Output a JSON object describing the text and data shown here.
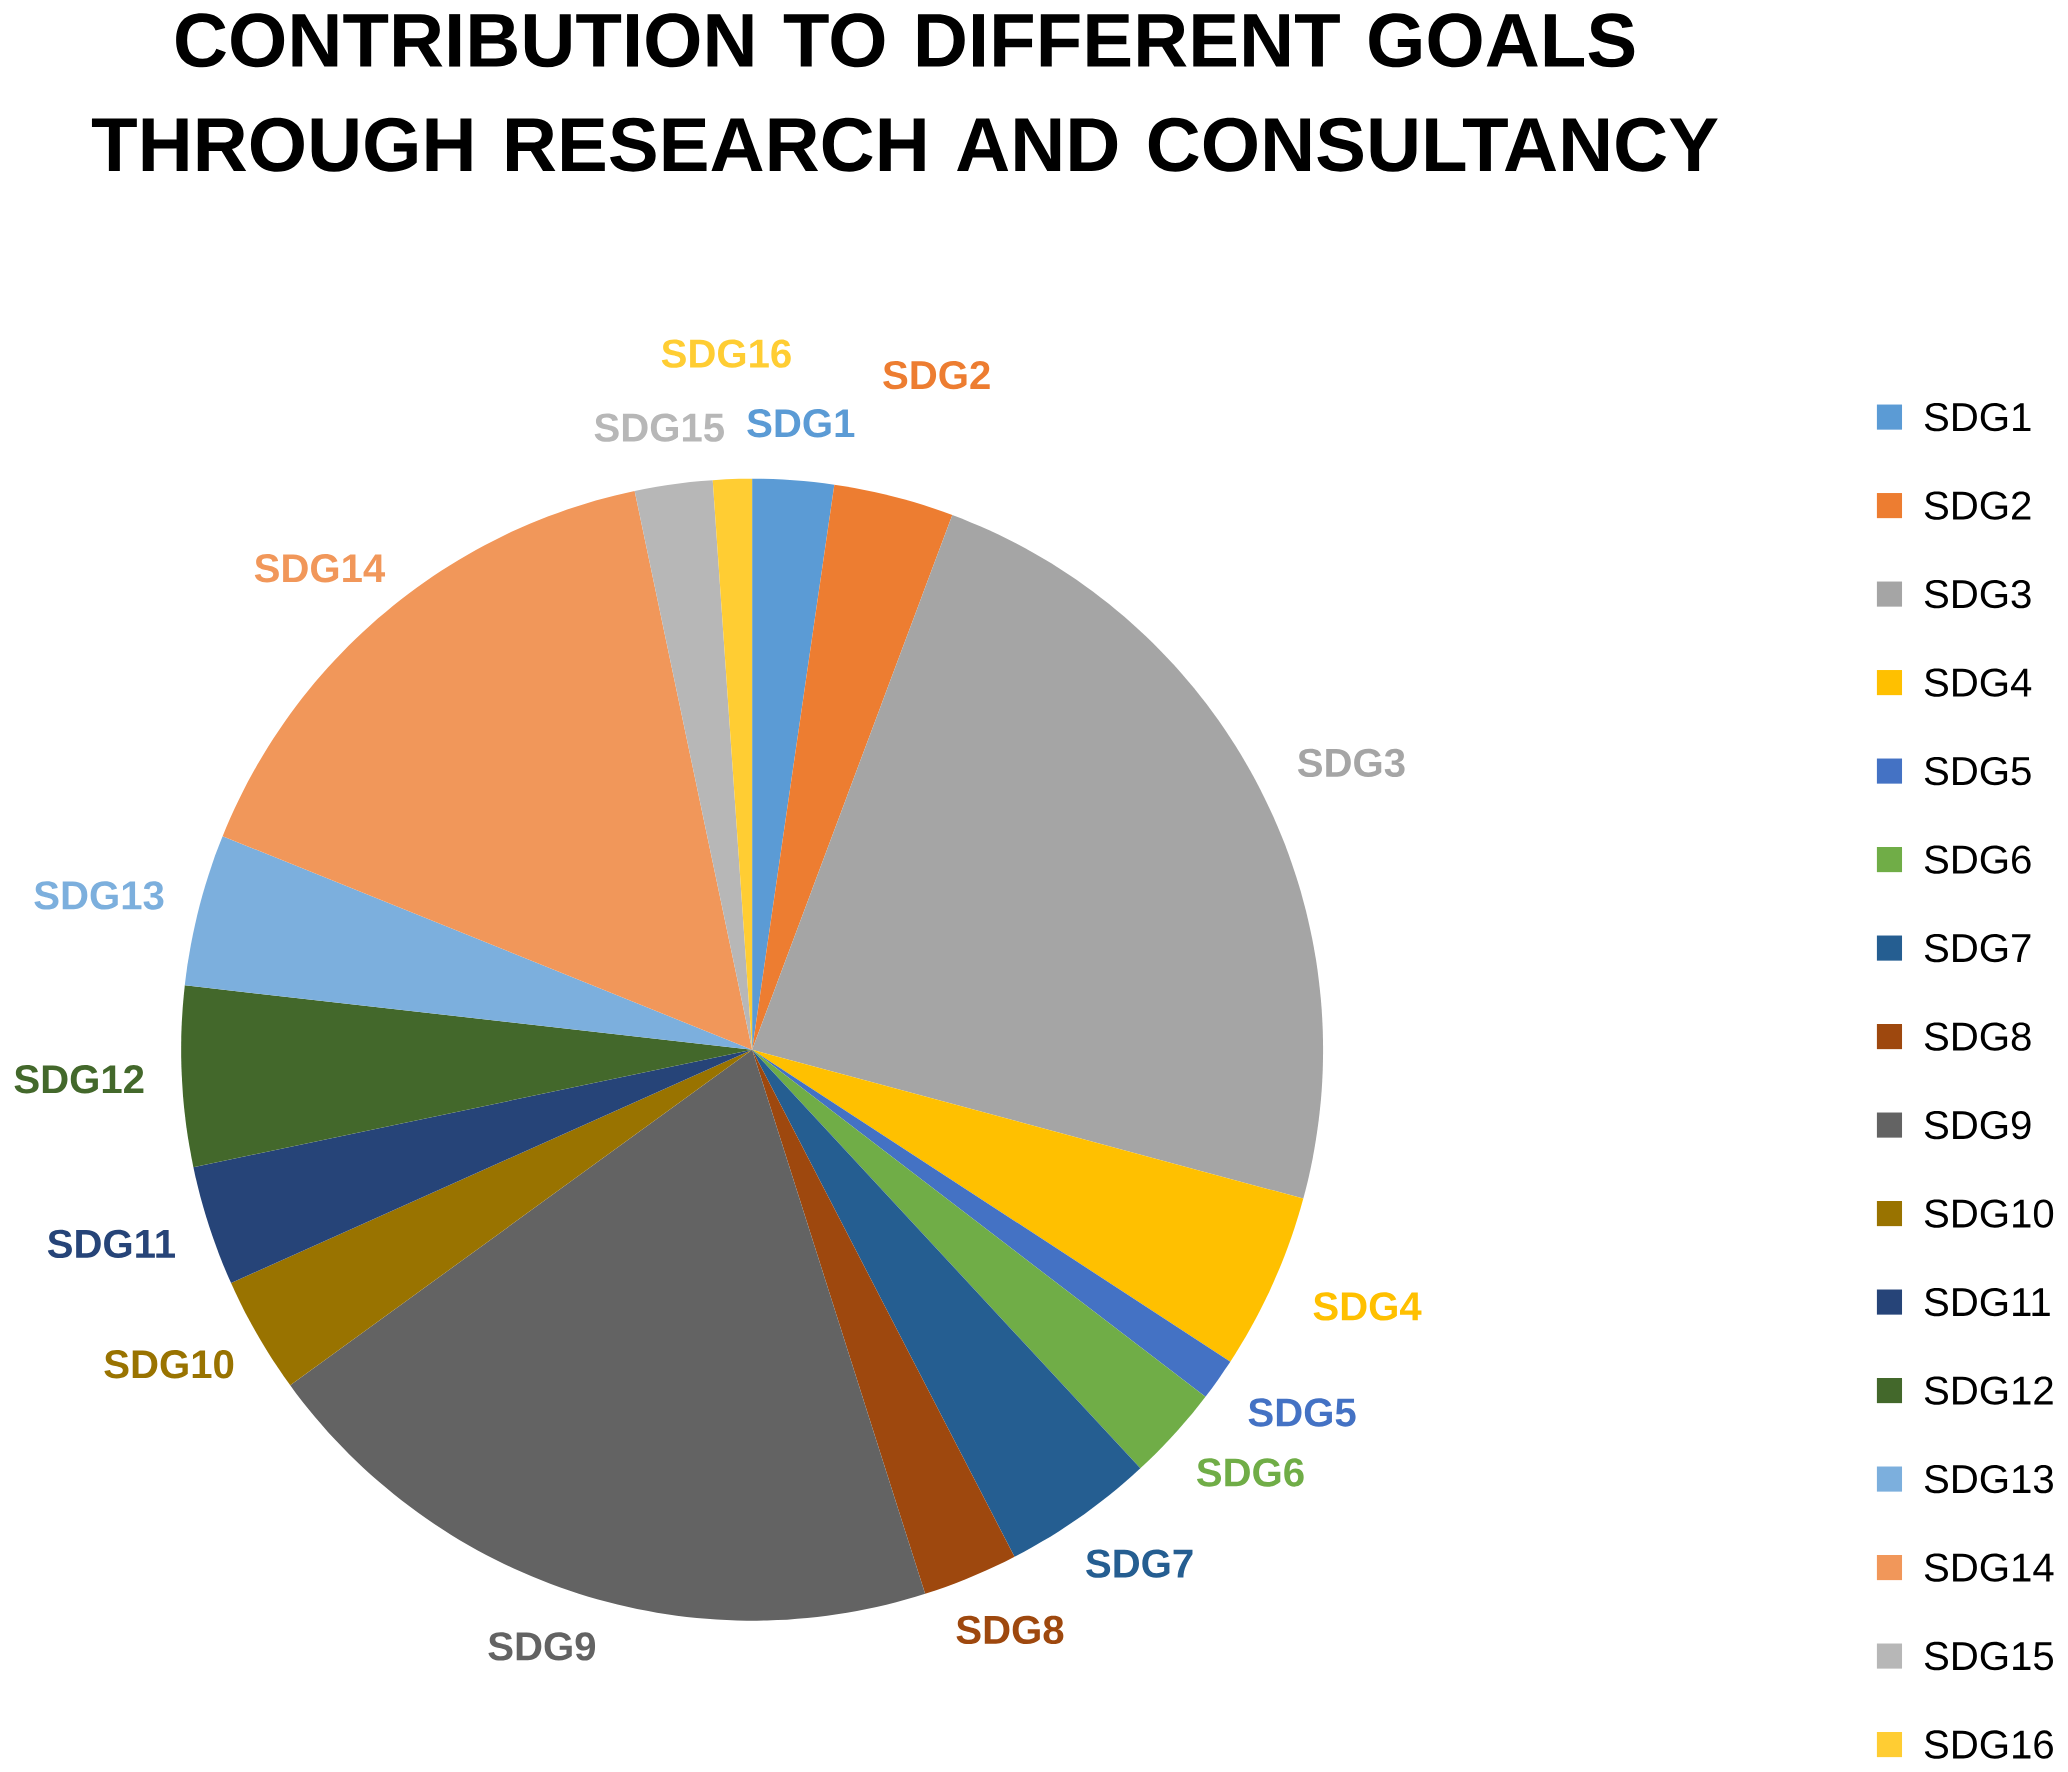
{
  "chart_data": {
    "type": "pie",
    "title": "CONTRIBUTION TO DIFFERENT GOALS THROUGH RESEARCH AND CONSULTANCY",
    "categories": [
      "SDG1",
      "SDG2",
      "SDG3",
      "SDG4",
      "SDG5",
      "SDG6",
      "SDG7",
      "SDG8",
      "SDG9",
      "SDG10",
      "SDG11",
      "SDG12",
      "SDG13",
      "SDG14",
      "SDG15",
      "SDG16"
    ],
    "values": [
      2.3,
      3.4,
      23.5,
      5.0,
      1.2,
      2.7,
      4.3,
      2.7,
      19.9,
      3.3,
      3.4,
      5.1,
      4.3,
      15.6,
      2.2,
      1.1
    ],
    "colors": [
      "#5b9bd5",
      "#ed7d31",
      "#a5a5a5",
      "#ffc000",
      "#4472c4",
      "#70ad47",
      "#255e91",
      "#9e480e",
      "#636363",
      "#997300",
      "#264478",
      "#43682b",
      "#7cafdd",
      "#f1975a",
      "#b7b7b7",
      "#ffcd33"
    ],
    "legend": "right"
  }
}
